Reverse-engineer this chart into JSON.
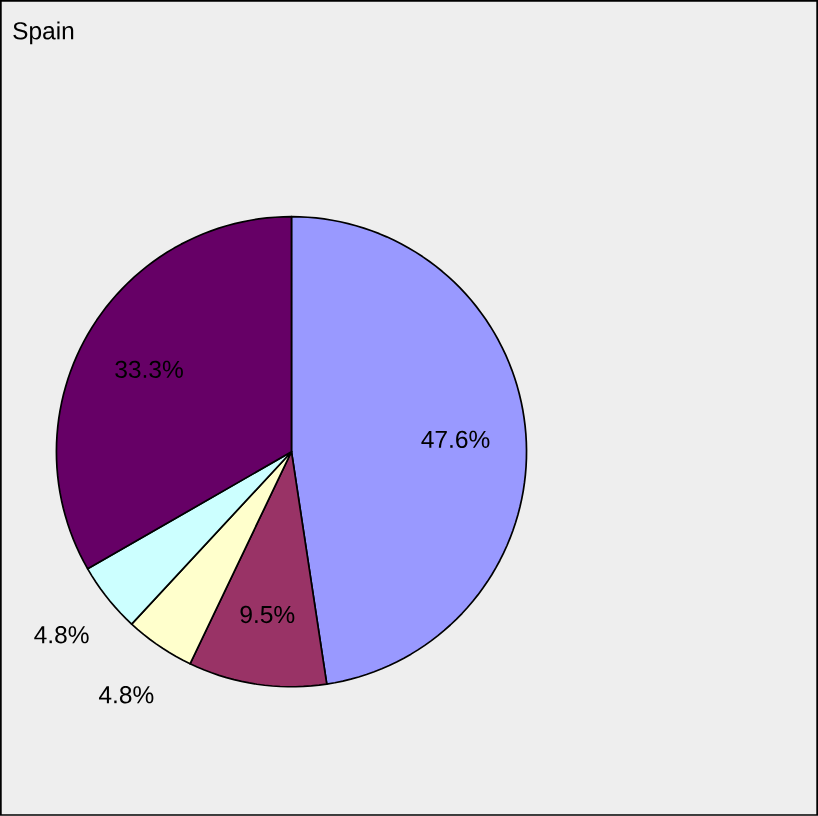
{
  "chart_data": {
    "type": "pie",
    "title": "Spain",
    "categories": [
      null,
      null,
      null,
      null,
      null
    ],
    "values": [
      47.6,
      9.5,
      4.8,
      4.8,
      33.3
    ],
    "value_labels": [
      "47.6%",
      "9.5%",
      "4.8%",
      "4.8%",
      "33.3%"
    ],
    "colors": [
      "#9999ff",
      "#993366",
      "#ffffcc",
      "#ccffff",
      "#660066"
    ]
  }
}
